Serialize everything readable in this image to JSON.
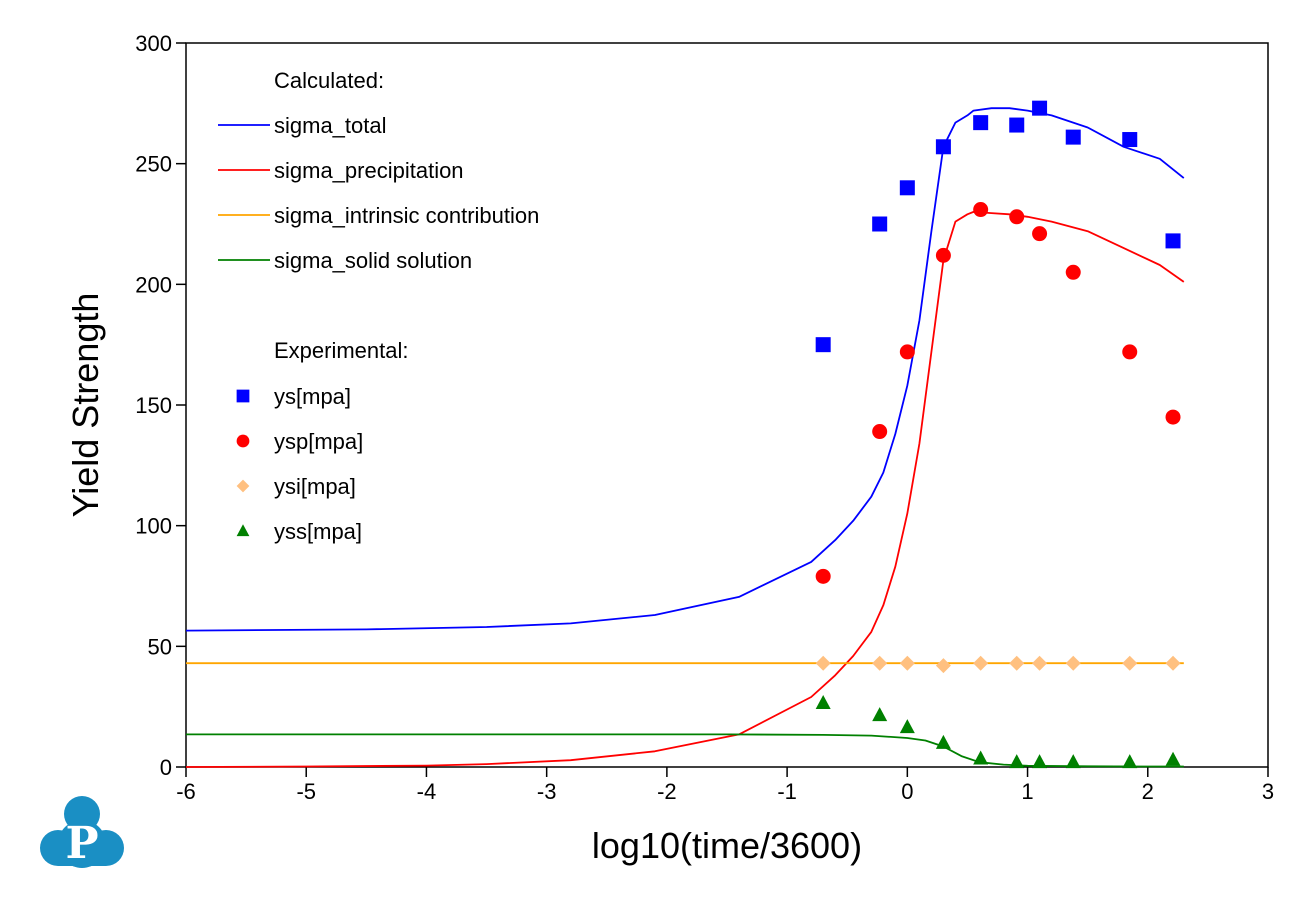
{
  "chart_data": {
    "type": "line",
    "title": "",
    "xlabel": "log10(time/3600)",
    "ylabel": "Yield Strength",
    "xlim": [
      -6,
      3
    ],
    "ylim": [
      0,
      300
    ],
    "xticks": [
      -6,
      -5,
      -4,
      -3,
      -2,
      -1,
      0,
      1,
      2,
      3
    ],
    "xtick_labels": [
      "-6",
      "-5",
      "-4",
      "-3",
      "-2",
      "-1",
      "0",
      "1",
      "2",
      "3"
    ],
    "yticks": [
      0,
      50,
      100,
      150,
      200,
      250,
      300
    ],
    "ytick_labels": [
      "0",
      "50",
      "100",
      "150",
      "200",
      "250",
      "300"
    ],
    "grid": false,
    "legend_position": "top-left",
    "legend": {
      "calculated_header": "Calculated:",
      "experimental_header": "Experimental:"
    },
    "series": [
      {
        "name": "sigma_total",
        "kind": "line",
        "color": "#0000ff",
        "x": [
          -6,
          -4.5,
          -3.5,
          -2.8,
          -2.1,
          -1.4,
          -0.8,
          -0.6,
          -0.45,
          -0.3,
          -0.2,
          -0.1,
          0.0,
          0.1,
          0.2,
          0.3,
          0.4,
          0.5,
          0.55,
          0.7,
          0.85,
          1.0,
          1.2,
          1.5,
          1.8,
          2.1,
          2.3
        ],
        "y": [
          56.5,
          57,
          58,
          59.5,
          63,
          70.5,
          85,
          94,
          102,
          112,
          122,
          138,
          158,
          185,
          222,
          257,
          267,
          270,
          272,
          273,
          273,
          272,
          270,
          265,
          257,
          252,
          244
        ]
      },
      {
        "name": "sigma_precipitation",
        "kind": "line",
        "color": "#ff0000",
        "x": [
          -6,
          -5,
          -4,
          -3.5,
          -2.8,
          -2.1,
          -1.4,
          -0.8,
          -0.6,
          -0.45,
          -0.3,
          -0.2,
          -0.1,
          0.0,
          0.1,
          0.2,
          0.3,
          0.4,
          0.5,
          0.55,
          0.7,
          0.85,
          1.0,
          1.2,
          1.5,
          1.8,
          2.1,
          2.3
        ],
        "y": [
          0,
          0.2,
          0.6,
          1.2,
          2.8,
          6.5,
          13.5,
          29,
          38,
          46,
          56,
          67,
          83,
          105,
          134,
          172,
          210,
          226,
          229,
          230,
          229.5,
          229,
          228,
          226,
          222,
          215,
          208,
          201
        ]
      },
      {
        "name": "sigma_intrinsic contribution",
        "kind": "line",
        "color": "#ffa500",
        "x": [
          -6,
          2.3
        ],
        "y": [
          43,
          43
        ]
      },
      {
        "name": "sigma_solid solution",
        "kind": "line",
        "color": "#008000",
        "x": [
          -6,
          -3,
          -1.5,
          -0.7,
          -0.3,
          0.0,
          0.15,
          0.3,
          0.45,
          0.6,
          0.8,
          1.0,
          1.5,
          2.0,
          2.3
        ],
        "y": [
          13.5,
          13.5,
          13.5,
          13.3,
          13,
          12,
          11,
          8.5,
          4.5,
          2,
          1,
          0.5,
          0.3,
          0.2,
          0.2
        ]
      },
      {
        "name": "ys[mpa]",
        "kind": "scatter",
        "marker": "square",
        "color": "#0000ff",
        "x": [
          -0.7,
          -0.23,
          0.0,
          0.3,
          0.61,
          0.91,
          1.1,
          1.38,
          1.85,
          2.21
        ],
        "y": [
          175,
          225,
          240,
          257,
          267,
          266,
          273,
          261,
          260,
          218
        ]
      },
      {
        "name": "ysp[mpa]",
        "kind": "scatter",
        "marker": "circle",
        "color": "#ff0000",
        "x": [
          -0.7,
          -0.23,
          0.0,
          0.3,
          0.61,
          0.91,
          1.1,
          1.38,
          1.85,
          2.21
        ],
        "y": [
          79,
          139,
          172,
          212,
          231,
          228,
          221,
          205,
          172,
          145
        ]
      },
      {
        "name": "ysi[mpa]",
        "kind": "scatter",
        "marker": "diamond",
        "color": "#ffc080",
        "x": [
          -0.7,
          -0.23,
          0.0,
          0.3,
          0.61,
          0.91,
          1.1,
          1.38,
          1.85,
          2.21
        ],
        "y": [
          43,
          43,
          43,
          42,
          43,
          43,
          43,
          43,
          43,
          43
        ]
      },
      {
        "name": "yss[mpa]",
        "kind": "scatter",
        "marker": "triangle",
        "color": "#008000",
        "x": [
          -0.7,
          -0.23,
          0.0,
          0.3,
          0.61,
          0.91,
          1.1,
          1.38,
          1.85,
          2.21
        ],
        "y": [
          26.5,
          21.5,
          16.5,
          10,
          3.5,
          2,
          2,
          2,
          2,
          3
        ]
      }
    ]
  },
  "logo": {
    "letter": "P",
    "color": "#1a8fc4"
  }
}
